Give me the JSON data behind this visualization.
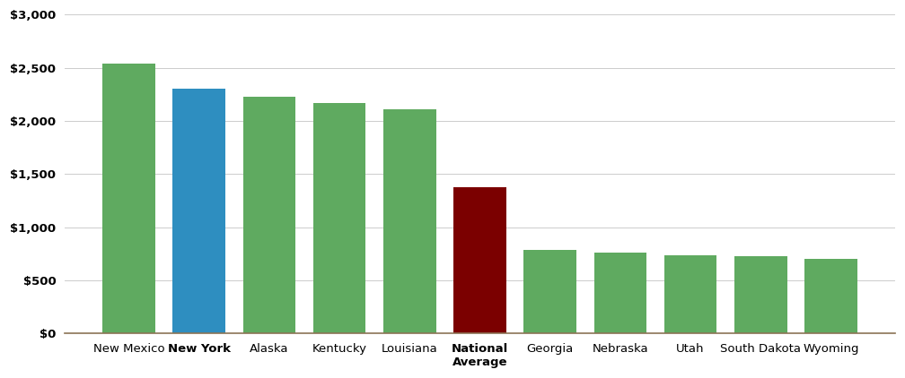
{
  "categories": [
    "New Mexico",
    "New York",
    "Alaska",
    "Kentucky",
    "Louisiana",
    "National\nAverage",
    "Georgia",
    "Nebraska",
    "Utah",
    "South Dakota",
    "Wyoming"
  ],
  "values": [
    2540,
    2305,
    2225,
    2170,
    2105,
    1375,
    790,
    760,
    740,
    730,
    700
  ],
  "bar_colors": [
    "#5faa60",
    "#2e8ec0",
    "#5faa60",
    "#5faa60",
    "#5faa60",
    "#7b0000",
    "#5faa60",
    "#5faa60",
    "#5faa60",
    "#5faa60",
    "#5faa60"
  ],
  "xlabel_bold": [
    "New York",
    "National\nAverage"
  ],
  "ylim": [
    0,
    3000
  ],
  "yticks": [
    0,
    500,
    1000,
    1500,
    2000,
    2500,
    3000
  ],
  "background_color": "#ffffff",
  "grid_color": "#cccccc",
  "bar_width": 0.75
}
